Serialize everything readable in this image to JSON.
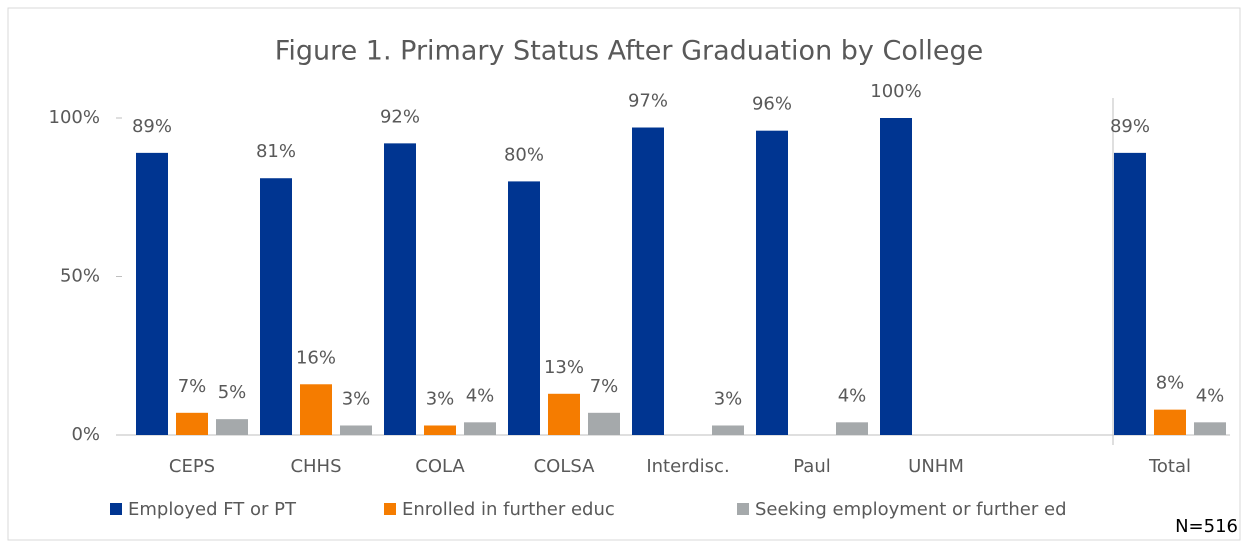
{
  "chart_data": {
    "type": "bar",
    "title": "Figure 1. Primary Status After Graduation by College",
    "categories": [
      "CEPS",
      "CHHS",
      "COLA",
      "COLSA",
      "Interdisc.",
      "Paul",
      "UNHM",
      "Total"
    ],
    "series": [
      {
        "name": "Employed FT or PT",
        "color": "#003591",
        "values": [
          89,
          81,
          92,
          80,
          97,
          96,
          100,
          89
        ],
        "value_labels": [
          "89%",
          "81%",
          "92%",
          "80%",
          "97%",
          "96%",
          "100%",
          "89%"
        ]
      },
      {
        "name": "Enrolled in further educ",
        "color": "#f57c00",
        "values": [
          7,
          16,
          3,
          13,
          null,
          null,
          null,
          8
        ],
        "value_labels": [
          "7%",
          "16%",
          "3%",
          "13%",
          null,
          null,
          null,
          "8%"
        ]
      },
      {
        "name": "Seeking employment or further ed",
        "color": "#a5a9ab",
        "values": [
          5,
          3,
          4,
          7,
          3,
          4,
          null,
          4
        ],
        "value_labels": [
          "5%",
          "3%",
          "4%",
          "7%",
          "3%",
          "4%",
          null,
          "4%"
        ]
      }
    ],
    "ylim": [
      0,
      100
    ],
    "yticks": [
      {
        "value": 0,
        "label": "0%"
      },
      {
        "value": 50,
        "label": "50%"
      },
      {
        "value": 100,
        "label": "100%"
      }
    ],
    "grid": false,
    "legend": "bottom",
    "note": "N=516"
  }
}
